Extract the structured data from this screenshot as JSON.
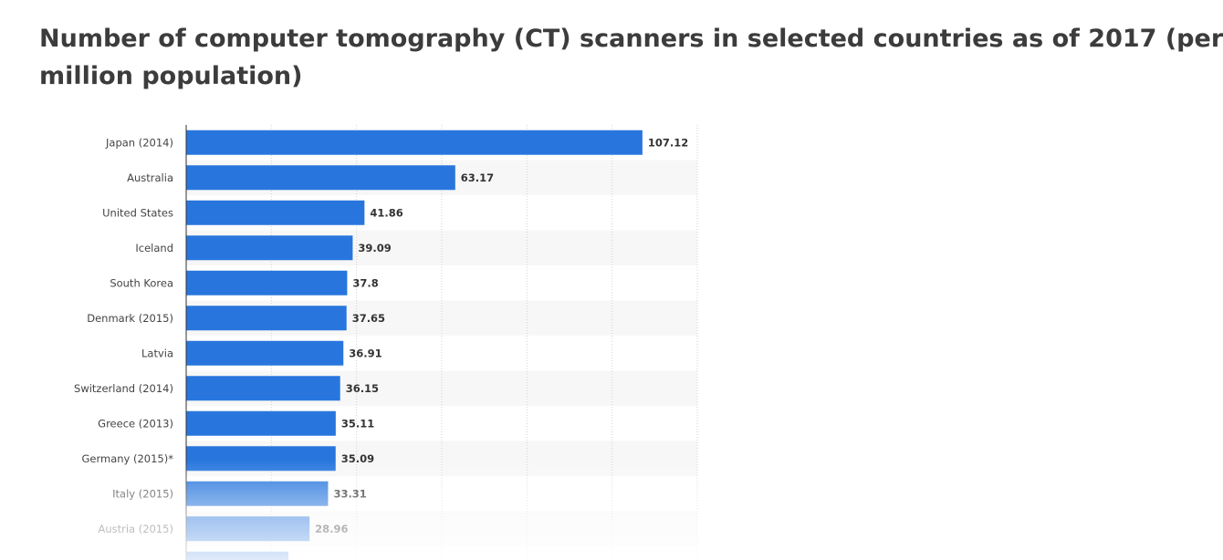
{
  "title_line1": "Number of computer tomography (CT) scanners in selected countries as of 2017 (per",
  "title_line2": "million population)",
  "chart_data": {
    "type": "bar",
    "orientation": "horizontal",
    "title": "Number of computer tomography (CT) scanners in selected countries as of 2017 (per million population)",
    "categories": [
      "Japan (2014)",
      "Australia",
      "United States",
      "Iceland",
      "South Korea",
      "Denmark (2015)",
      "Latvia",
      "Switzerland (2014)",
      "Greece (2013)",
      "Germany (2015)*",
      "Italy (2015)",
      "Austria (2015)"
    ],
    "values": [
      107.12,
      63.17,
      41.86,
      39.09,
      37.8,
      37.65,
      36.91,
      36.15,
      35.11,
      35.09,
      33.31,
      28.96
    ],
    "value_labels": [
      "107.12",
      "63.17",
      "41.86",
      "39.09",
      "37.8",
      "37.65",
      "36.91",
      "36.15",
      "35.11",
      "35.09",
      "33.31",
      "28.96"
    ],
    "partial_next_value": 24,
    "xlim": [
      0,
      120
    ],
    "grid": true,
    "bar_color": "#2876dd"
  }
}
